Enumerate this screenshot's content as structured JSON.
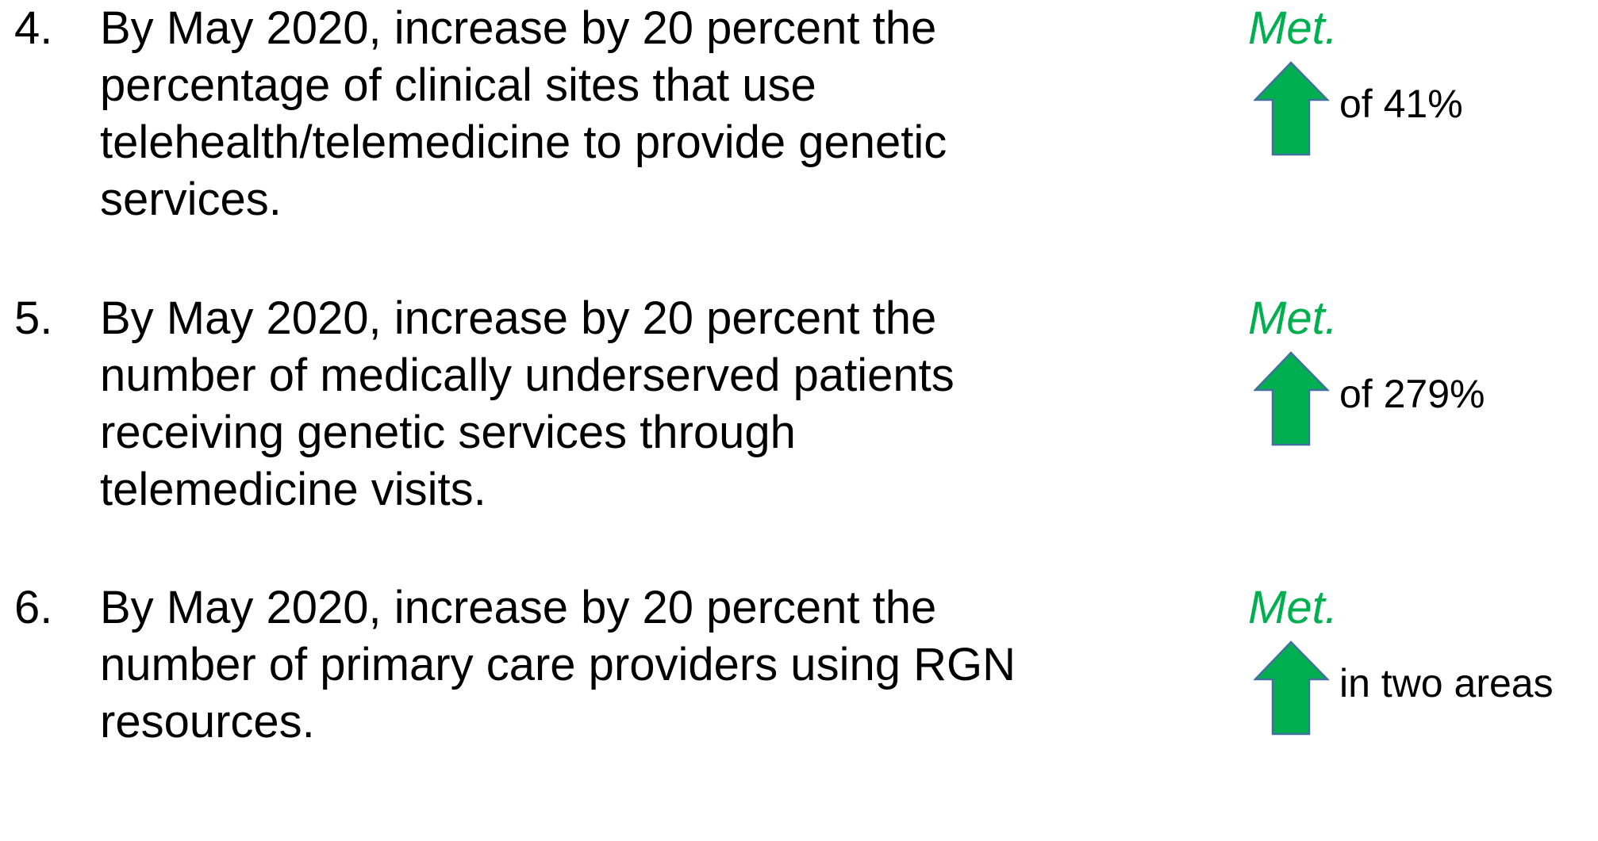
{
  "items": [
    {
      "number": "4.",
      "lines": [
        "By May 2020, increase by 20 percent the",
        "percentage of clinical sites that use",
        "telehealth/telemedicine to provide genetic",
        "services."
      ],
      "status": "Met.",
      "detail": "of 41%"
    },
    {
      "number": "5.",
      "lines": [
        "By May 2020, increase by 20 percent the",
        "number of medically underserved patients",
        "receiving genetic services through",
        "telemedicine visits."
      ],
      "status": "Met.",
      "detail": "of 279%"
    },
    {
      "number": "6.",
      "lines": [
        "By May 2020, increase by 20 percent the",
        "number of primary care providers using RGN",
        "resources."
      ],
      "status": "Met.",
      "detail": "in two areas"
    }
  ]
}
